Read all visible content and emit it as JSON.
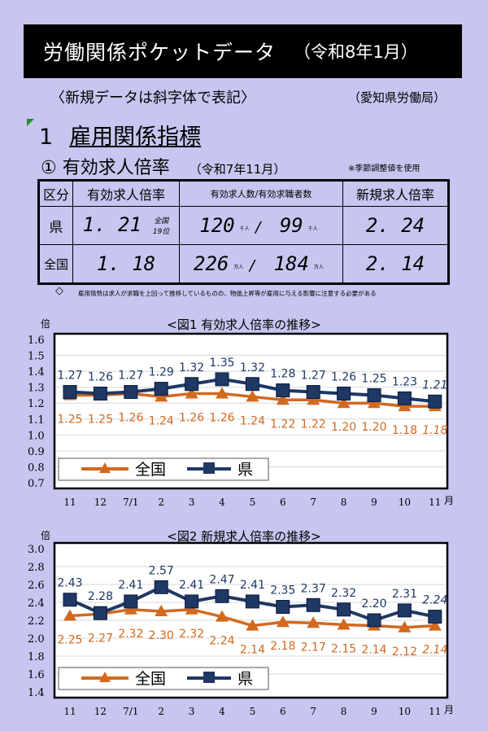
{
  "header": {
    "title": "労働関係ポケットデータ",
    "date": "（令和8年1月）",
    "subtitle": "〈新規データは斜字体で表記〉",
    "source": "（愛知県労働局）"
  },
  "section": {
    "number": "1",
    "title": "雇用関係指標"
  },
  "subsection": {
    "title": "① 有効求人倍率",
    "period": "（令和7年11月）",
    "note": "※季節調整値を使用"
  },
  "table": {
    "headers": [
      "区分",
      "有効求人倍率",
      "有効求人数/有効求職者数",
      "新規求人倍率"
    ],
    "rows": [
      {
        "label": "県",
        "ratio": "1. 21",
        "rank_top": "全国",
        "rank_bottom": "19位",
        "openings": "120",
        "openings_unit": "千人",
        "seekers": "99",
        "seekers_unit": "千人",
        "new_ratio": "2. 24"
      },
      {
        "label": "全国",
        "ratio": "1. 18",
        "openings": "226",
        "openings_unit": "万人",
        "seekers": "184",
        "seekers_unit": "万人",
        "new_ratio": "2. 14"
      }
    ]
  },
  "remark": "雇用情勢は求人が求職を上回って推移しているものの、物価上昇等が雇用に与える影響に注意する必要がある",
  "colors": {
    "national": "#d2691e",
    "prefecture": "#1f3864",
    "background": "#c6c6f0"
  },
  "chart_data": [
    {
      "type": "line",
      "title": "<図1 有効求人倍率の推移>",
      "ylabel": "倍",
      "xunit": "月",
      "categories": [
        "11",
        "12",
        "7/1",
        "2",
        "3",
        "4",
        "5",
        "6",
        "7",
        "8",
        "9",
        "10",
        "11"
      ],
      "ylim": [
        0.7,
        1.6
      ],
      "yticks": [
        "1.6",
        "1.5",
        "1.4",
        "1.3",
        "1.2",
        "1.1",
        "1.0",
        "0.9",
        "0.8",
        "0.7"
      ],
      "grid": true,
      "legend": "bottom-left",
      "series": [
        {
          "name": "全国",
          "values": [
            1.25,
            1.25,
            1.26,
            1.24,
            1.26,
            1.26,
            1.24,
            1.22,
            1.22,
            1.2,
            1.2,
            1.18,
            1.18
          ],
          "labels": [
            "1.25",
            "1.25",
            "1.26",
            "1.24",
            "1.26",
            "1.26",
            "1.24",
            "1.22",
            "1.22",
            "1.20",
            "1.20",
            "1.18",
            "1.18"
          ]
        },
        {
          "name": "県",
          "values": [
            1.27,
            1.26,
            1.27,
            1.29,
            1.32,
            1.35,
            1.32,
            1.28,
            1.27,
            1.26,
            1.25,
            1.23,
            1.21
          ],
          "labels": [
            "1.27",
            "1.26",
            "1.27",
            "1.29",
            "1.32",
            "1.35",
            "1.32",
            "1.28",
            "1.27",
            "1.26",
            "1.25",
            "1.23",
            "1.21"
          ]
        }
      ]
    },
    {
      "type": "line",
      "title": "<図2  新規求人倍率の推移>",
      "ylabel": "倍",
      "xunit": "月",
      "categories": [
        "11",
        "12",
        "7/1",
        "2",
        "3",
        "4",
        "5",
        "6",
        "7",
        "8",
        "9",
        "10",
        "11"
      ],
      "ylim": [
        1.4,
        3.0
      ],
      "yticks": [
        "3.0",
        "2.8",
        "2.6",
        "2.4",
        "2.2",
        "2.0",
        "1.8",
        "1.6",
        "1.4"
      ],
      "grid": true,
      "legend": "bottom-left",
      "series": [
        {
          "name": "全国",
          "values": [
            2.25,
            2.27,
            2.32,
            2.3,
            2.32,
            2.24,
            2.14,
            2.18,
            2.17,
            2.15,
            2.14,
            2.12,
            2.14
          ],
          "labels": [
            "2.25",
            "2.27",
            "2.32",
            "2.30",
            "2.32",
            "2.24",
            "2.14",
            "2.18",
            "2.17",
            "2.15",
            "2.14",
            "2.12",
            "2.14"
          ]
        },
        {
          "name": "県",
          "values": [
            2.43,
            2.28,
            2.41,
            2.57,
            2.41,
            2.47,
            2.41,
            2.35,
            2.37,
            2.32,
            2.2,
            2.31,
            2.24
          ],
          "labels": [
            "2.43",
            "2.28",
            "2.41",
            "2.57",
            "2.41",
            "2.47",
            "2.41",
            "2.35",
            "2.37",
            "2.32",
            "2.20",
            "2.31",
            "2.24"
          ]
        }
      ]
    }
  ]
}
